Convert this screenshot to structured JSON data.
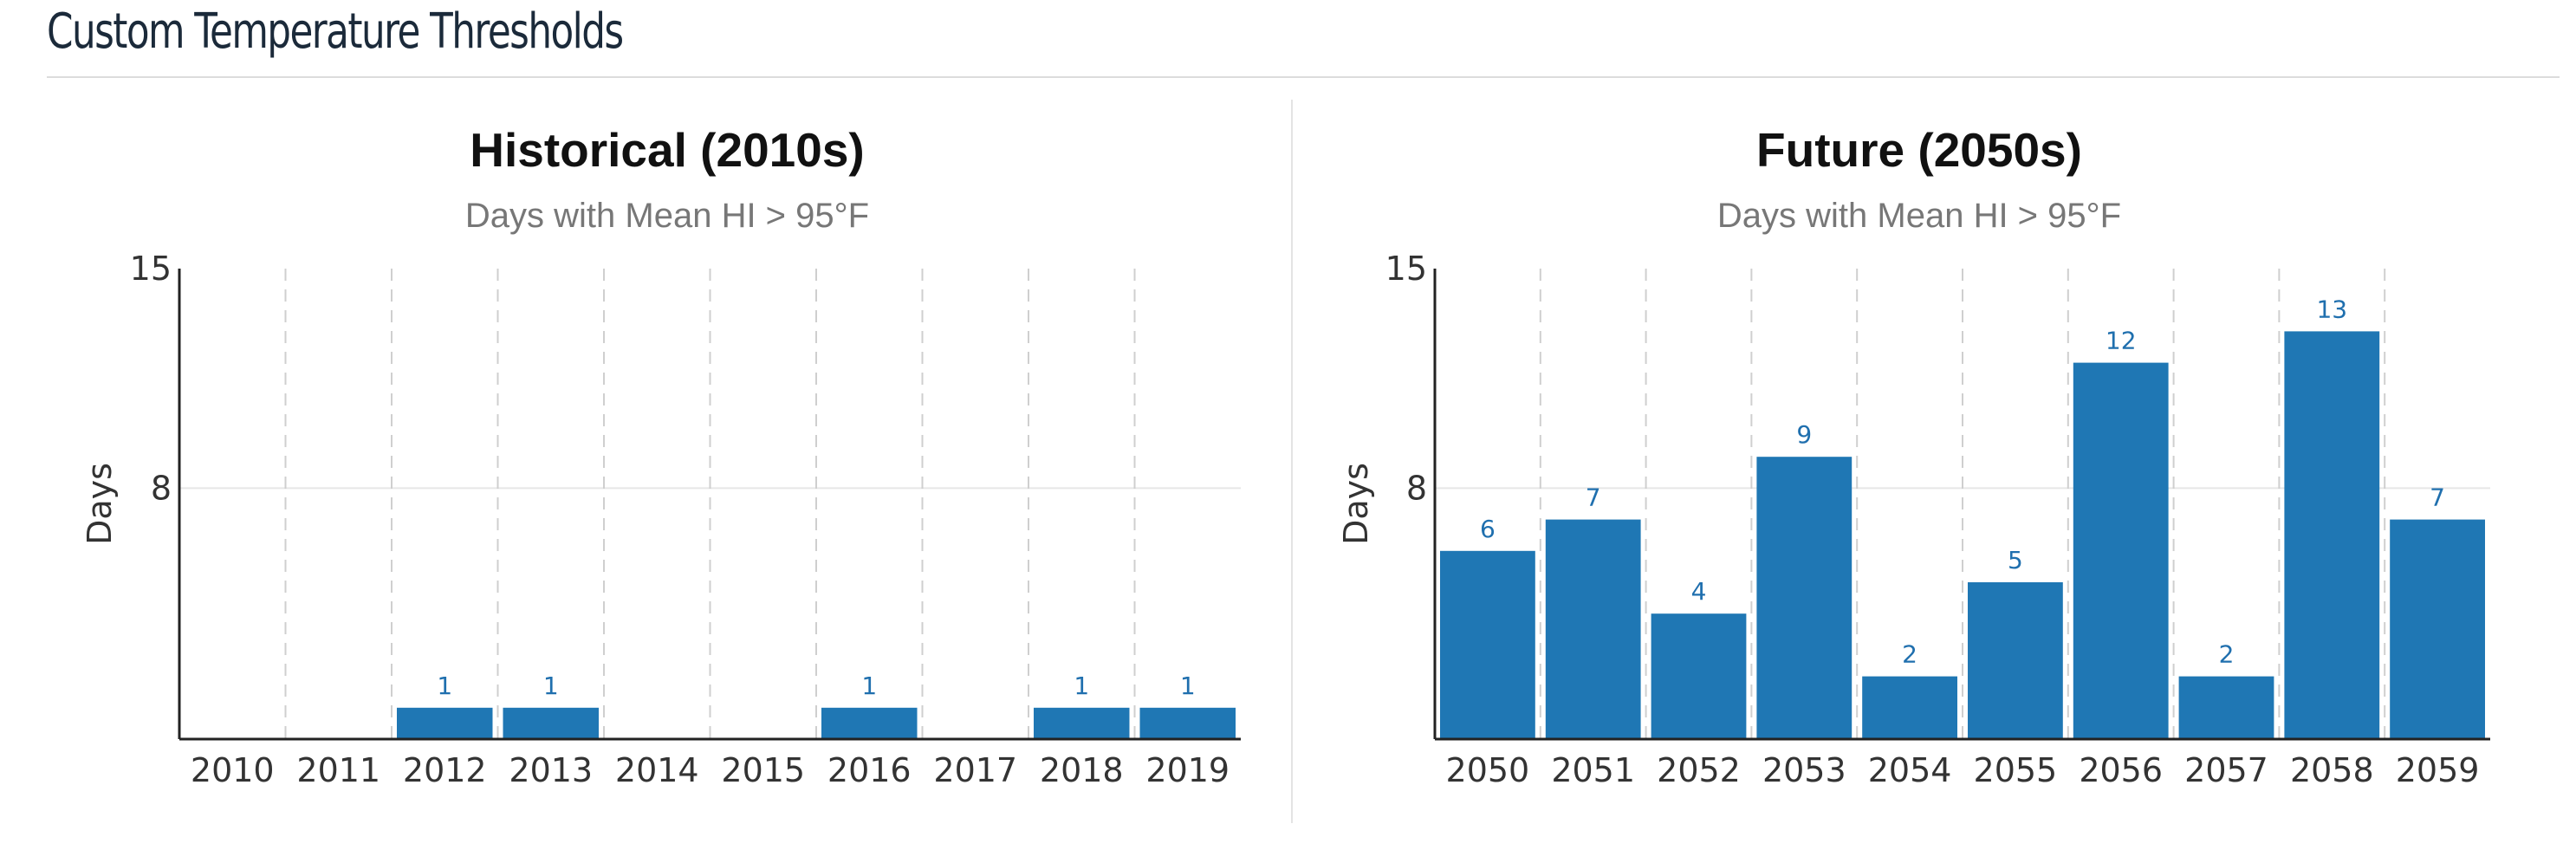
{
  "page": {
    "heading": "Custom Temperature Thresholds"
  },
  "colors": {
    "bar": "#1f77b4",
    "data_label": "#1f6fae",
    "grid": "#e6e6e6",
    "dashed_grid": "#cfcfcf",
    "axis": "#222222"
  },
  "chart_data": [
    {
      "type": "bar",
      "title": "Historical (2010s)",
      "subtitle": "Days with Mean HI > 95°F",
      "xlabel": "",
      "ylabel": "Days",
      "categories": [
        "2010",
        "2011",
        "2012",
        "2013",
        "2014",
        "2015",
        "2016",
        "2017",
        "2018",
        "2019"
      ],
      "values": [
        0,
        0,
        1,
        1,
        0,
        0,
        1,
        0,
        1,
        1
      ],
      "data_labels": [
        "",
        "",
        "1",
        "1",
        "",
        "",
        "1",
        "",
        "1",
        "1"
      ],
      "ylim": [
        0,
        15
      ],
      "yticks": [
        8,
        15
      ],
      "grid": "horizontal solid at ticks, vertical dashed between categories",
      "legend": "none"
    },
    {
      "type": "bar",
      "title": "Future (2050s)",
      "subtitle": "Days with Mean HI > 95°F",
      "xlabel": "",
      "ylabel": "Days",
      "categories": [
        "2050",
        "2051",
        "2052",
        "2053",
        "2054",
        "2055",
        "2056",
        "2057",
        "2058",
        "2059"
      ],
      "values": [
        6,
        7,
        4,
        9,
        2,
        5,
        12,
        2,
        13,
        7
      ],
      "data_labels": [
        "6",
        "7",
        "4",
        "9",
        "2",
        "5",
        "12",
        "2",
        "13",
        "7"
      ],
      "ylim": [
        0,
        15
      ],
      "yticks": [
        8,
        15
      ],
      "grid": "horizontal solid at ticks, vertical dashed between categories",
      "legend": "none"
    }
  ]
}
